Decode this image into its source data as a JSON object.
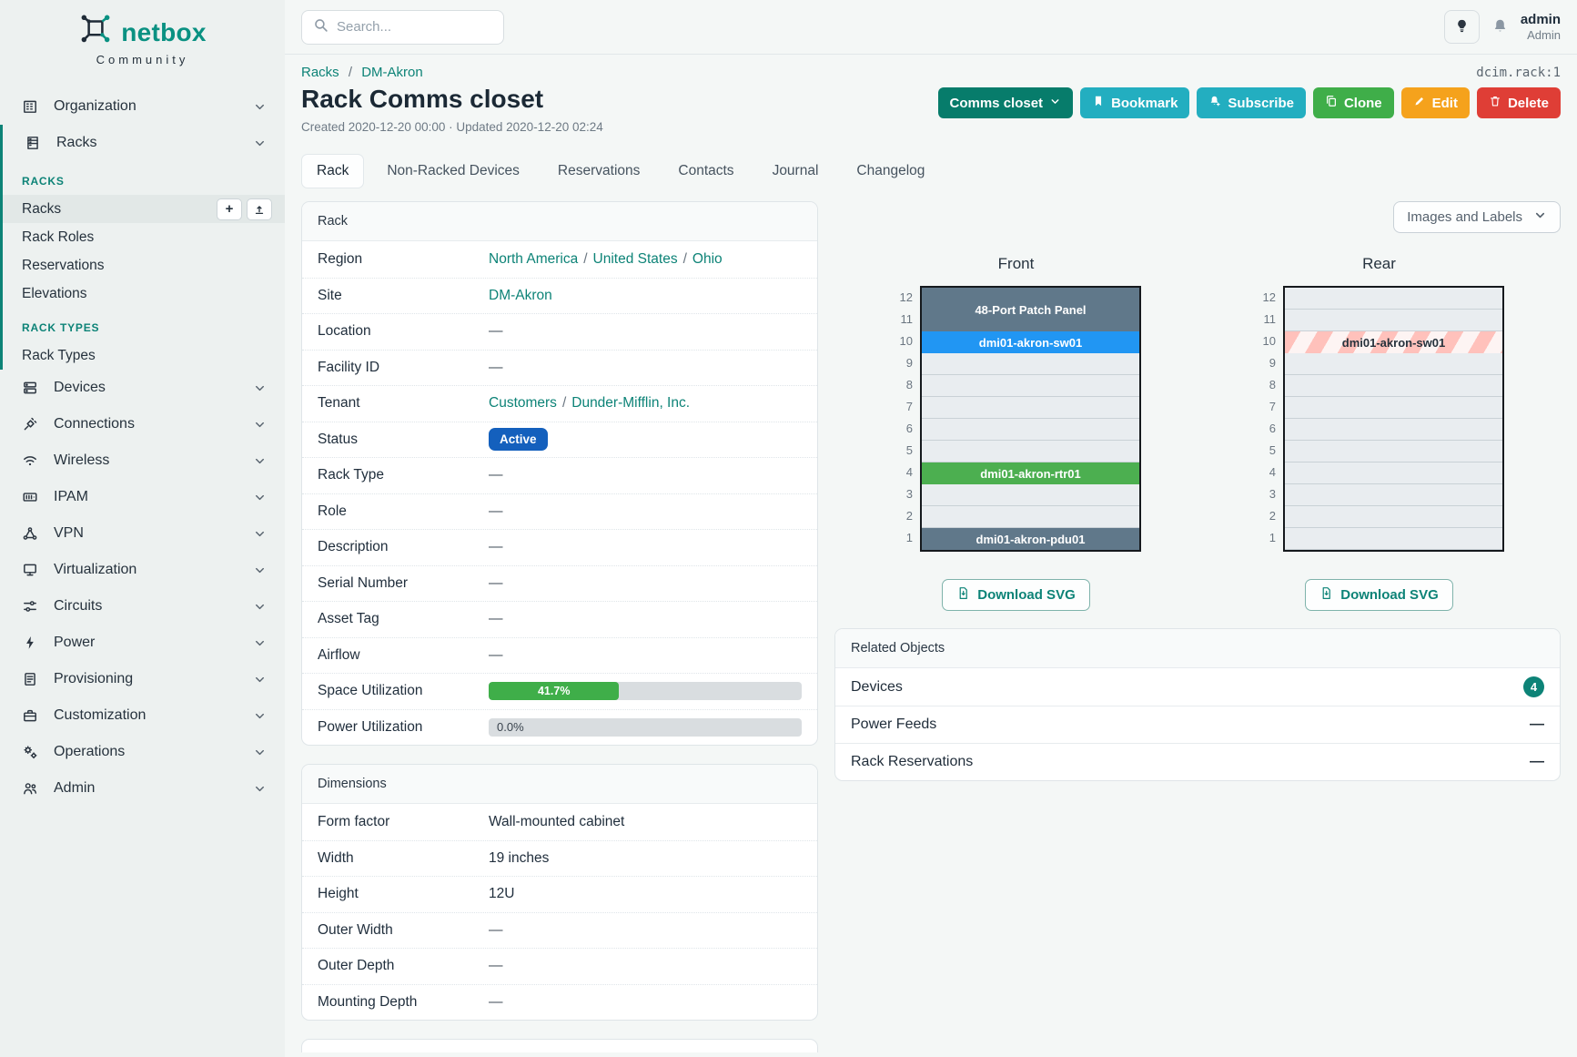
{
  "colors": {
    "brand_teal": "#0d8377",
    "status_active_bg": "#1460bd",
    "utilization_green": "#3fae49",
    "device_slate": "#60788a",
    "device_blue": "#2196f3",
    "device_green": "#4caf50",
    "button_dark_teal": "#077c6b",
    "button_cyan": "#23aec0",
    "button_green": "#3fae49",
    "button_orange": "#f5a21c",
    "button_red": "#df3e36"
  },
  "brand": {
    "name": "netbox",
    "community": "Community"
  },
  "topbar": {
    "search_placeholder": "Search...",
    "user_name": "admin",
    "user_role": "Admin"
  },
  "sidebar": {
    "organization": "Organization",
    "racks_parent": "Racks",
    "racks_group": "RACKS",
    "racks": "Racks",
    "rack_roles": "Rack Roles",
    "reservations": "Reservations",
    "elevations": "Elevations",
    "rack_types_group": "RACK TYPES",
    "rack_types": "Rack Types",
    "devices": "Devices",
    "connections": "Connections",
    "wireless": "Wireless",
    "ipam": "IPAM",
    "vpn": "VPN",
    "virtualization": "Virtualization",
    "circuits": "Circuits",
    "power": "Power",
    "provisioning": "Provisioning",
    "customization": "Customization",
    "operations": "Operations",
    "admin": "Admin",
    "add": "+"
  },
  "page": {
    "object_ref": "dcim.rack:1",
    "breadcrumb": [
      "Racks",
      "DM-Akron"
    ],
    "sep": "/",
    "title": "Rack Comms closet",
    "meta": "Created 2020-12-20 00:00 · Updated 2020-12-20 02:24",
    "actions": {
      "comms_closet": "Comms closet",
      "bookmark": "Bookmark",
      "subscribe": "Subscribe",
      "clone": "Clone",
      "edit": "Edit",
      "delete": "Delete"
    },
    "tabs": [
      "Rack",
      "Non-Racked Devices",
      "Reservations",
      "Contacts",
      "Journal",
      "Changelog"
    ]
  },
  "rack_panel": {
    "title": "Rack",
    "sep": "/",
    "labels": {
      "region": "Region",
      "site": "Site",
      "location": "Location",
      "facility_id": "Facility ID",
      "tenant": "Tenant",
      "status": "Status",
      "rack_type": "Rack Type",
      "role": "Role",
      "description": "Description",
      "serial_number": "Serial Number",
      "asset_tag": "Asset Tag",
      "airflow": "Airflow",
      "space_utilization": "Space Utilization",
      "power_utilization": "Power Utilization"
    },
    "values": {
      "region": [
        "North America",
        "United States",
        "Ohio"
      ],
      "site": "DM-Akron",
      "location": "—",
      "facility_id": "—",
      "tenant": [
        "Customers",
        "Dunder-Mifflin, Inc."
      ],
      "status": "Active",
      "rack_type": "—",
      "role": "—",
      "description": "—",
      "serial_number": "—",
      "asset_tag": "—",
      "airflow": "—",
      "space_utilization": 41.7,
      "space_utilization_pct": "41.7%",
      "power_utilization": 0,
      "power_utilization_pct": "0.0%"
    }
  },
  "dimensions_panel": {
    "title": "Dimensions",
    "labels": {
      "form_factor": "Form factor",
      "width": "Width",
      "height": "Height",
      "outer_width": "Outer Width",
      "outer_depth": "Outer Depth",
      "mounting_depth": "Mounting Depth"
    },
    "values": {
      "form_factor": "Wall-mounted cabinet",
      "width": "19 inches",
      "height": "12U",
      "outer_width": "—",
      "outer_depth": "—",
      "mounting_depth": "—"
    }
  },
  "elevations": {
    "view_selector": "Images and Labels",
    "front_title": "Front",
    "rear_title": "Rear",
    "unit_numbers": [
      "12",
      "11",
      "10",
      "9",
      "8",
      "7",
      "6",
      "5",
      "4",
      "3",
      "2",
      "1"
    ],
    "front": {
      "patch_panel": "48-Port Patch Panel",
      "switch": "dmi01-akron-sw01",
      "router": "dmi01-akron-rtr01",
      "pdu": "dmi01-akron-pdu01"
    },
    "rear": {
      "switch": "dmi01-akron-sw01"
    },
    "download_svg": "Download SVG"
  },
  "related_objects": {
    "title": "Related Objects",
    "rows": [
      {
        "label": "Devices",
        "count": "4"
      },
      {
        "label": "Power Feeds",
        "value": "—"
      },
      {
        "label": "Rack Reservations",
        "value": "—"
      }
    ]
  }
}
